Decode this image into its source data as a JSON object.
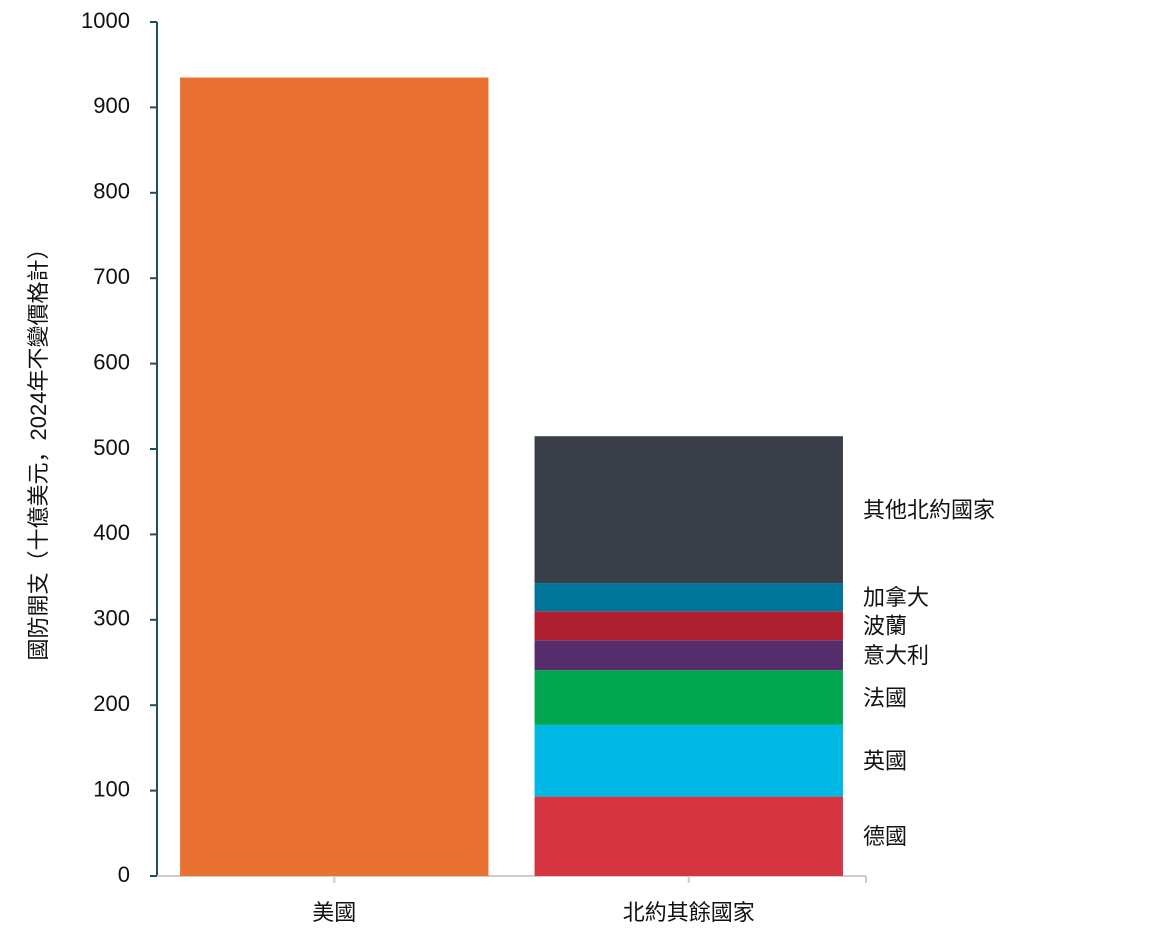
{
  "chart_data": {
    "type": "stacked-bar",
    "y_label": "國防開支（十億美元，2024年不變價格計）",
    "categories": [
      "美國",
      "北約其餘國家"
    ],
    "series": [
      {
        "color": "#e97132",
        "values": [
          935,
          null
        ]
      },
      {
        "name": "德國",
        "color": "#d43540",
        "values": [
          null,
          93
        ]
      },
      {
        "name": "英國",
        "color": "#00b8e4",
        "values": [
          null,
          84
        ]
      },
      {
        "name": "法國",
        "color": "#00a650",
        "values": [
          null,
          64
        ]
      },
      {
        "name": "意大利",
        "color": "#552d6d",
        "values": [
          null,
          35
        ]
      },
      {
        "name": "波蘭",
        "color": "#ae2030",
        "values": [
          null,
          34
        ]
      },
      {
        "name": "加拿大",
        "color": "#00759a",
        "values": [
          null,
          33
        ]
      },
      {
        "name": "其他北約國家",
        "color": "#3a3e48",
        "values": [
          null,
          172
        ]
      }
    ],
    "ylim": [
      0,
      1000
    ],
    "yticks": [
      0,
      100,
      200,
      300,
      400,
      500,
      600,
      700,
      800,
      900,
      1000
    ]
  }
}
